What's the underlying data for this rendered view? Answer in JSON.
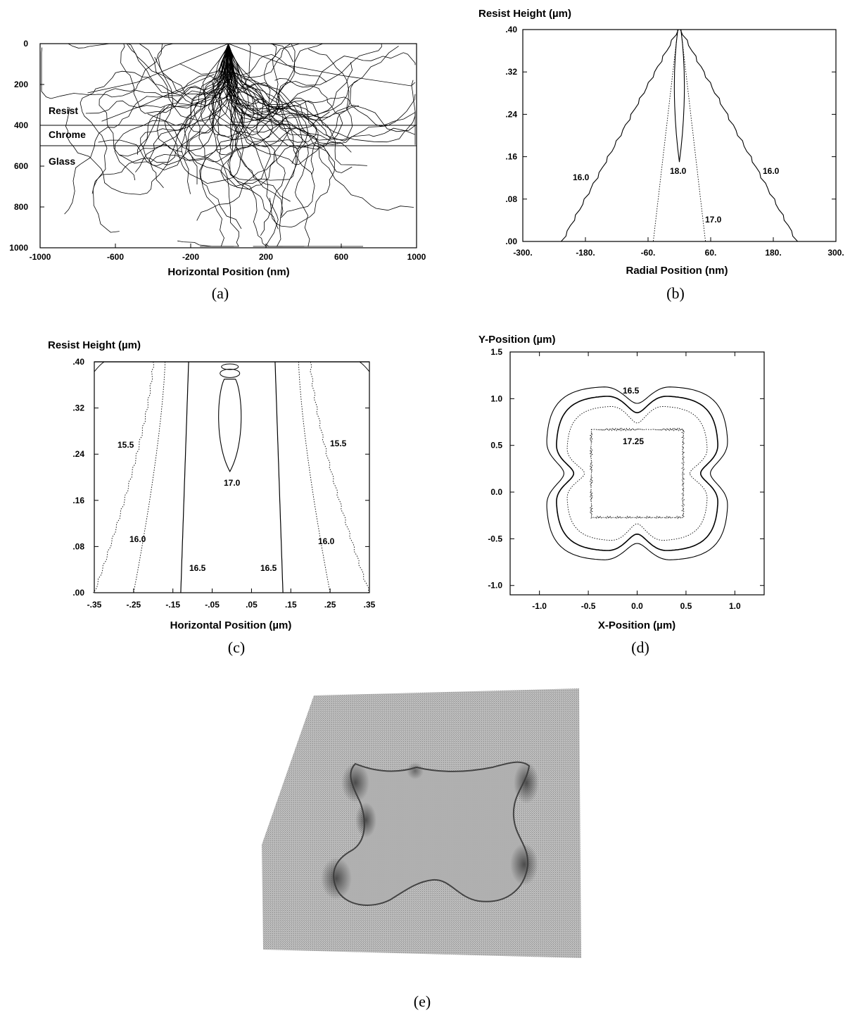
{
  "chart_data": [
    {
      "panel": "a",
      "type": "scatter",
      "subtype": "monte-carlo electron trajectories",
      "xlabel": "Horizontal Position (nm)",
      "ylabel": "",
      "xlim": [
        -1000,
        1000
      ],
      "ylim": [
        1000,
        0
      ],
      "xticks": [
        "-1000",
        "-600",
        "-200",
        "200",
        "600",
        "1000"
      ],
      "yticks": [
        "0",
        "200",
        "400",
        "600",
        "800",
        "1000"
      ],
      "layers": [
        {
          "label": "Resist",
          "depth_from": 0,
          "depth_to": 400
        },
        {
          "label": "Chrome",
          "depth_from": 400,
          "depth_to": 500
        },
        {
          "label": "Glass",
          "depth_from": 500,
          "depth_to": 1000
        }
      ],
      "interfaces": [
        400,
        500
      ],
      "grid": false,
      "caption": "(a)"
    },
    {
      "panel": "b",
      "type": "contour",
      "xlabel": "Radial Position (nm)",
      "ylabel": "Resist Height (µm)",
      "xlim": [
        -300,
        300
      ],
      "ylim": [
        0,
        0.4
      ],
      "xticks": [
        "-300.",
        "-180.",
        "-60.",
        "60.",
        "180.",
        "300."
      ],
      "yticks": [
        ".00",
        ".08",
        ".16",
        ".24",
        ".32",
        ".40"
      ],
      "contours": [
        {
          "level": "16.0",
          "style": "solid",
          "x_at_bottom": [
            -225,
            225
          ],
          "x_at_top": [
            -2,
            2
          ]
        },
        {
          "level": "17.0",
          "style": "dotted",
          "x_at_bottom": [
            -50,
            50
          ],
          "x_at_top": [
            -3,
            3
          ]
        },
        {
          "level": "18.0",
          "style": "solid",
          "tip_height": 0.15,
          "x_at_top": [
            -3,
            3
          ]
        }
      ],
      "contour_labels": [
        "16.0",
        "18.0",
        "16.0",
        "17.0"
      ],
      "caption": "(b)"
    },
    {
      "panel": "c",
      "type": "contour",
      "xlabel": "Horizontal Position (µm)",
      "ylabel": "Resist Height (µm)",
      "xlim": [
        -0.35,
        0.35
      ],
      "ylim": [
        0,
        0.4
      ],
      "xticks": [
        "-.35",
        "-.25",
        "-.15",
        "-.05",
        ".05",
        ".15",
        ".25",
        ".35"
      ],
      "yticks": [
        ".00",
        ".08",
        ".16",
        ".24",
        ".32",
        ".40"
      ],
      "contours": [
        {
          "level": "15.5",
          "style": "dotted",
          "x_at_bottom": [
            -0.35,
            0.35
          ],
          "x_at_top": [
            -0.2,
            0.2
          ]
        },
        {
          "level": "16.0",
          "style": "dotted",
          "x_at_bottom": [
            -0.25,
            0.25
          ],
          "x_at_top": [
            -0.17,
            0.17
          ]
        },
        {
          "level": "16.5",
          "style": "solid",
          "x_at_bottom": [
            -0.13,
            0.13
          ],
          "x_at_top": [
            -0.11,
            0.11
          ]
        },
        {
          "level": "17.0",
          "style": "solid",
          "center_x": -0.005,
          "y_range": [
            0.21,
            0.37
          ]
        }
      ],
      "contour_labels": [
        "15.5",
        "15.5",
        "17.0",
        "16.0",
        "16.0",
        "16.5",
        "16.5"
      ],
      "caption": "(c)"
    },
    {
      "panel": "d",
      "type": "contour",
      "xlabel": "X-Position (µm)",
      "ylabel": "Y-Position (µm)",
      "xlim": [
        -1.3,
        1.3
      ],
      "ylim": [
        -1.1,
        1.5
      ],
      "xticks": [
        "-1.0",
        "-0.5",
        "0.0",
        "0.5",
        "1.0"
      ],
      "yticks": [
        "1.5",
        "1.0",
        "0.5",
        "0.0",
        "-0.5",
        "-1.0"
      ],
      "contours": [
        {
          "level": "16.5",
          "style": "solid",
          "shape": "rounded square with concave sides",
          "half_width": 0.93
        },
        {
          "level": "",
          "style": "solid",
          "half_width": 0.83
        },
        {
          "level": "",
          "style": "dotted",
          "half_width": 0.72
        },
        {
          "level": "17.25",
          "style": "dotted",
          "shape": "square",
          "x_range": [
            -0.47,
            0.47
          ],
          "y_range": [
            -0.27,
            0.67
          ]
        }
      ],
      "contour_labels": [
        "16.5",
        "17.25"
      ],
      "caption": "(d)"
    },
    {
      "panel": "e",
      "type": "image",
      "description_visible": "3-D rendering of developed resist surface with four-lobed depression",
      "caption": "(e)"
    }
  ]
}
